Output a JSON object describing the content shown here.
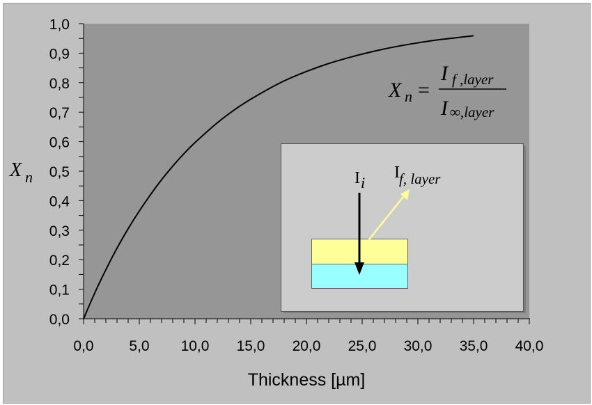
{
  "chart_data": {
    "type": "line",
    "title": "",
    "xlabel": "Thickness [µm]",
    "ylabel": "X_n",
    "xlim": [
      0,
      40
    ],
    "ylim": [
      0,
      1
    ],
    "x_ticks": [
      "0,0",
      "5,0",
      "10,0",
      "15,0",
      "20,0",
      "25,0",
      "30,0",
      "35,0",
      "40,0"
    ],
    "y_ticks": [
      "0,0",
      "0,1",
      "0,2",
      "0,3",
      "0,4",
      "0,5",
      "0,6",
      "0,7",
      "0,8",
      "0,9",
      "1,0"
    ],
    "grid": false,
    "legend": null,
    "series": [
      {
        "name": "X_n",
        "x": [
          0,
          1,
          2,
          3,
          4,
          5,
          6,
          7,
          8,
          9,
          10,
          12,
          14,
          16,
          18,
          20,
          22,
          24,
          26,
          28,
          30,
          32,
          35
        ],
        "y": [
          0,
          0.087,
          0.166,
          0.239,
          0.305,
          0.365,
          0.42,
          0.471,
          0.517,
          0.559,
          0.597,
          0.664,
          0.72,
          0.766,
          0.806,
          0.838,
          0.865,
          0.887,
          0.906,
          0.922,
          0.935,
          0.946,
          0.959
        ]
      }
    ],
    "annotations": {
      "formula": {
        "lhs": "X",
        "lhs_sub": "n",
        "eq": "=",
        "num": "I",
        "num_sub": "f ,layer",
        "den": "I",
        "den_sub": "∞,layer"
      },
      "inset": {
        "incident_label": "I",
        "incident_sub": "i",
        "fluorescence_label": "I",
        "fluorescence_sub": "f, layer",
        "layer_color": "#ffff99",
        "substrate_color": "#99ffff",
        "fluorescence_arrow_color": "#ffff99",
        "incident_arrow_color": "#000000"
      }
    },
    "colors": {
      "plot_bg": "#969696",
      "chart_bg": "#c0c0c0",
      "inset_bg": "#cccccc",
      "line": "#000000"
    }
  }
}
